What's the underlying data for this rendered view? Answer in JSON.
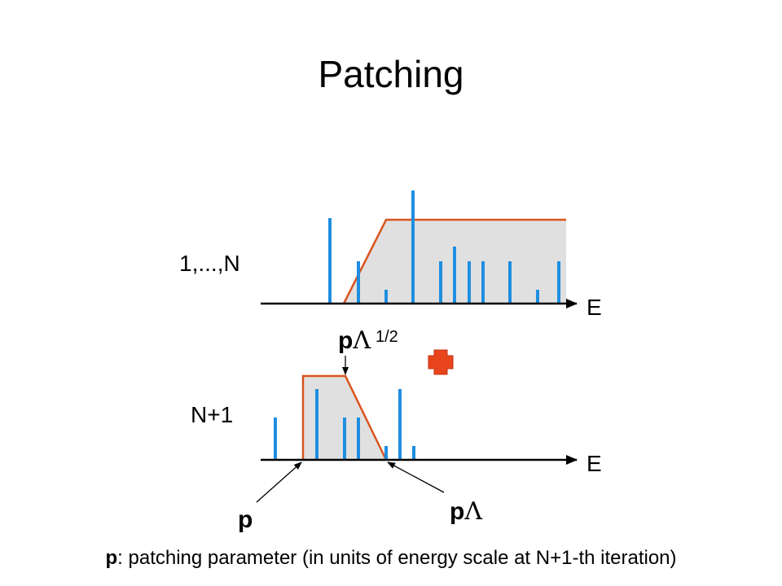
{
  "title": "Patching",
  "labels": {
    "top_row": "1,...,N",
    "top_axis": "E",
    "bottom_row": "N+1",
    "bottom_axis": "E",
    "p_lambda_half": {
      "p": "p",
      "lambda": "Λ",
      "exponent": "1/2"
    },
    "p_lambda": {
      "p": "p",
      "lambda": "Λ"
    },
    "p": "p"
  },
  "caption": {
    "term": "p",
    "text": ": patching parameter (in units of energy scale at N+1-th iteration)"
  }
}
